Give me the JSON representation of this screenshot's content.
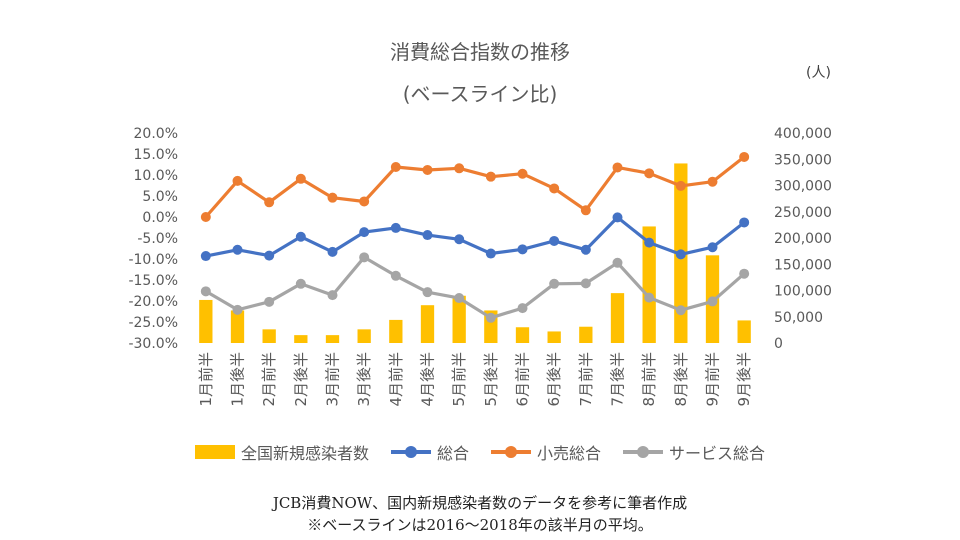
{
  "title_line1": "消費総合指数の推移",
  "title_line2": "(ベースライン比)",
  "unit_label": "(人)",
  "footer_line1": "JCB消費NOW、国内新規感染者数のデータを参考に筆者作成",
  "footer_line2": "※ベースラインは2016～2018年の該半月の平均。",
  "chart_data": {
    "type": "bar+line",
    "categories": [
      "1月前半",
      "1月後半",
      "2月前半",
      "2月後半",
      "3月前半",
      "3月後半",
      "4月前半",
      "4月後半",
      "5月前半",
      "5月後半",
      "6月前半",
      "6月後半",
      "7月前半",
      "7月後半",
      "8月前半",
      "8月後半",
      "9月前半",
      "9月後半"
    ],
    "left_axis": {
      "min": -30,
      "max": 20,
      "step": 5,
      "tick_labels": [
        "20.0%",
        "15.0%",
        "10.0%",
        "5.0%",
        "0.0%",
        "-5.0%",
        "-10.0%",
        "-15.0%",
        "-20.0%",
        "-25.0%",
        "-30.0%"
      ]
    },
    "right_axis": {
      "min": 0,
      "max": 400000,
      "step": 50000,
      "tick_labels": [
        "400,000",
        "350,000",
        "300,000",
        "250,000",
        "200,000",
        "150,000",
        "100,000",
        "50,000",
        "0"
      ]
    },
    "bar_series": {
      "name": "全国新規感染者数",
      "color": "#FFC000",
      "axis": "right",
      "values": [
        82000,
        62000,
        26000,
        15000,
        15000,
        26000,
        44000,
        72000,
        90000,
        62000,
        30000,
        22000,
        31000,
        95000,
        222000,
        342000,
        167000,
        43000
      ]
    },
    "line_series": [
      {
        "name": "総合",
        "color": "#4472C4",
        "axis": "left",
        "values": [
          -9.3,
          -7.8,
          -9.2,
          -4.7,
          -8.3,
          -3.6,
          -2.6,
          -4.3,
          -5.3,
          -8.7,
          -7.7,
          -5.7,
          -7.8,
          -0.1,
          -6.1,
          -8.9,
          -7.2,
          -1.3
        ]
      },
      {
        "name": "小売総合",
        "color": "#ED7D31",
        "axis": "left",
        "values": [
          0.0,
          8.6,
          3.5,
          9.1,
          4.6,
          3.7,
          11.9,
          11.2,
          11.6,
          9.6,
          10.3,
          6.8,
          1.6,
          11.8,
          10.4,
          7.4,
          8.4,
          14.3
        ]
      },
      {
        "name": "サービス総合",
        "color": "#A5A5A5",
        "axis": "left",
        "values": [
          -17.7,
          -22.1,
          -20.2,
          -15.9,
          -18.6,
          -9.6,
          -14.0,
          -17.9,
          -19.3,
          -24.0,
          -21.7,
          -15.9,
          -15.8,
          -10.9,
          -19.2,
          -22.2,
          -20.1,
          -13.5
        ]
      }
    ],
    "legend": [
      "全国新規感染者数",
      "総合",
      "小売総合",
      "サービス総合"
    ],
    "legend_position": "bottom"
  }
}
